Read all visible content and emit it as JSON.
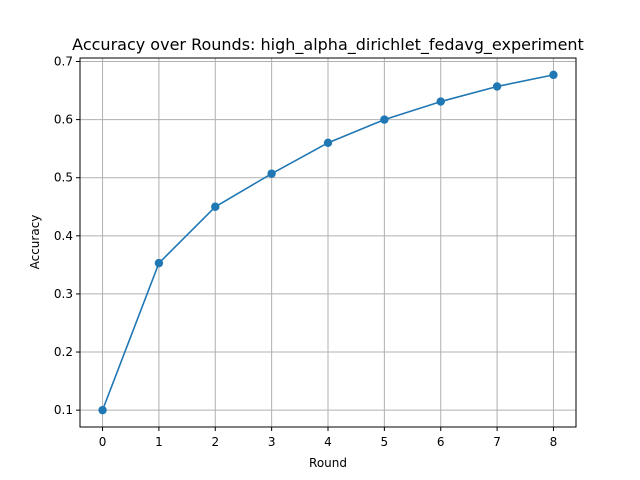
{
  "chart_data": {
    "type": "line",
    "title": "Accuracy over Rounds: high_alpha_dirichlet_fedavg_experiment",
    "xlabel": "Round",
    "ylabel": "Accuracy",
    "x": [
      0,
      1,
      2,
      3,
      4,
      5,
      6,
      7,
      8
    ],
    "series": [
      {
        "values": [
          0.1,
          0.353,
          0.45,
          0.507,
          0.56,
          0.6,
          0.631,
          0.657,
          0.677
        ],
        "color": "#1f77b4",
        "marker": "circle"
      }
    ],
    "xlim": [
      -0.4,
      8.4
    ],
    "ylim": [
      0.071,
      0.706
    ],
    "xticks": [
      "0",
      "1",
      "2",
      "3",
      "4",
      "5",
      "6",
      "7",
      "8"
    ],
    "yticks": [
      "0.1",
      "0.2",
      "0.3",
      "0.4",
      "0.5",
      "0.6",
      "0.7"
    ],
    "grid": true,
    "legend": "none"
  }
}
